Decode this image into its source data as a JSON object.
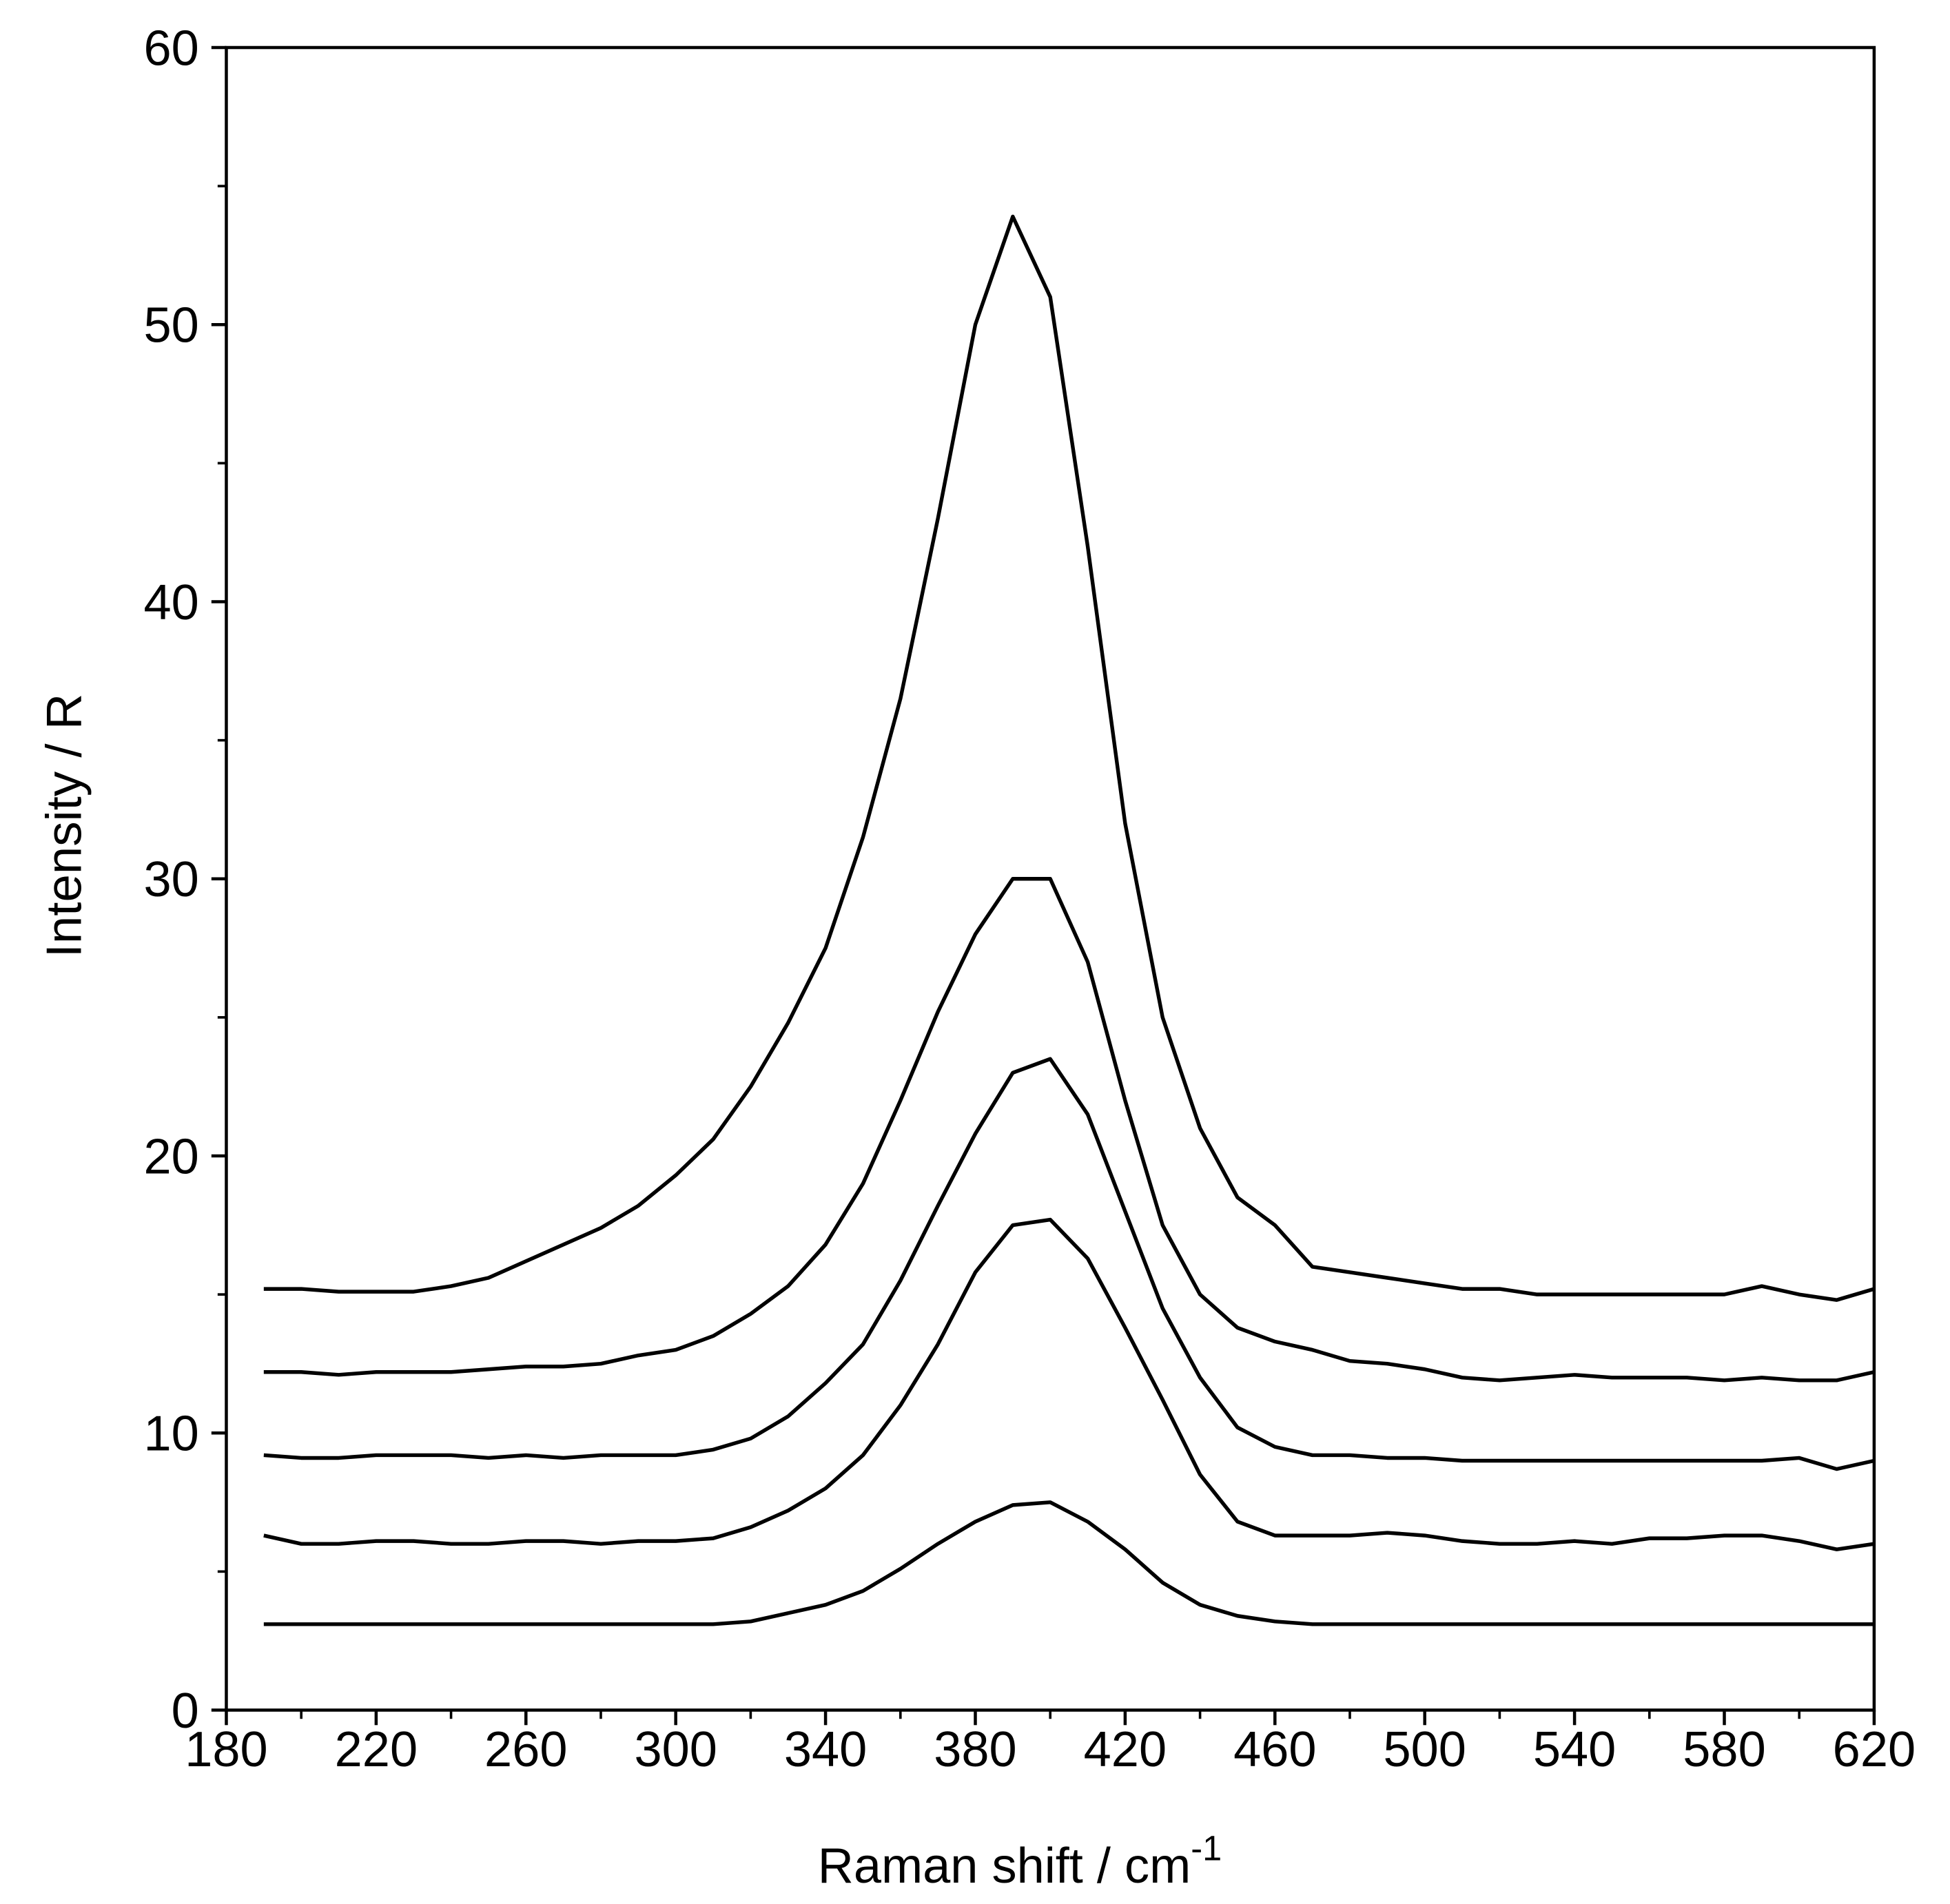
{
  "chart_data": {
    "type": "line",
    "x_label": "Raman shift / cm",
    "x_label_sup": "-1",
    "y_label": "Intensity / R",
    "x": [
      190,
      200,
      210,
      220,
      230,
      240,
      250,
      260,
      270,
      280,
      290,
      300,
      310,
      320,
      330,
      340,
      350,
      360,
      370,
      380,
      390,
      400,
      410,
      420,
      430,
      440,
      450,
      460,
      470,
      480,
      490,
      500,
      510,
      520,
      530,
      540,
      550,
      560,
      570,
      580,
      590,
      600,
      610,
      620
    ],
    "series": [
      {
        "color": "#000000",
        "values": [
          15.2,
          15.2,
          15.1,
          15.1,
          15.1,
          15.3,
          15.6,
          16.2,
          16.8,
          17.4,
          18.2,
          19.3,
          20.6,
          22.5,
          24.8,
          27.5,
          31.5,
          36.5,
          43,
          50,
          53.9,
          51,
          42,
          32,
          25,
          21,
          18.5,
          17.5,
          16,
          15.8,
          15.6,
          15.4,
          15.2,
          15.2,
          15,
          15,
          15,
          15,
          15,
          15,
          15.3,
          15,
          14.8,
          15.2
        ]
      },
      {
        "color": "#000000",
        "values": [
          12.2,
          12.2,
          12.1,
          12.2,
          12.2,
          12.2,
          12.3,
          12.4,
          12.4,
          12.5,
          12.8,
          13,
          13.5,
          14.3,
          15.3,
          16.8,
          19,
          22,
          25.2,
          28,
          30,
          30,
          27,
          22,
          17.5,
          15,
          13.8,
          13.3,
          13,
          12.6,
          12.5,
          12.3,
          12,
          11.9,
          12,
          12.1,
          12,
          12,
          12,
          11.9,
          12,
          11.9,
          11.9,
          12.2
        ]
      },
      {
        "color": "#000000",
        "values": [
          9.2,
          9.1,
          9.1,
          9.2,
          9.2,
          9.2,
          9.1,
          9.2,
          9.1,
          9.2,
          9.2,
          9.2,
          9.4,
          9.8,
          10.6,
          11.8,
          13.2,
          15.5,
          18.2,
          20.8,
          23,
          23.5,
          21.5,
          18,
          14.5,
          12,
          10.2,
          9.5,
          9.2,
          9.2,
          9.1,
          9.1,
          9,
          9,
          9,
          9,
          9,
          9,
          9,
          9,
          9,
          9.1,
          8.7,
          9
        ]
      },
      {
        "color": "#000000",
        "values": [
          6.3,
          6,
          6,
          6.1,
          6.1,
          6,
          6,
          6.1,
          6.1,
          6,
          6.1,
          6.1,
          6.2,
          6.6,
          7.2,
          8,
          9.2,
          11,
          13.2,
          15.8,
          17.5,
          17.7,
          16.3,
          13.8,
          11.2,
          8.5,
          6.8,
          6.3,
          6.3,
          6.3,
          6.4,
          6.3,
          6.1,
          6,
          6,
          6.1,
          6,
          6.2,
          6.2,
          6.3,
          6.3,
          6.1,
          5.8,
          6
        ]
      },
      {
        "color": "#000000",
        "values": [
          3.1,
          3.1,
          3.1,
          3.1,
          3.1,
          3.1,
          3.1,
          3.1,
          3.1,
          3.1,
          3.1,
          3.1,
          3.1,
          3.2,
          3.5,
          3.8,
          4.3,
          5.1,
          6,
          6.8,
          7.4,
          7.5,
          6.8,
          5.8,
          4.6,
          3.8,
          3.4,
          3.2,
          3.1,
          3.1,
          3.1,
          3.1,
          3.1,
          3.1,
          3.1,
          3.1,
          3.1,
          3.1,
          3.1,
          3.1,
          3.1,
          3.1,
          3.1,
          3.1
        ]
      }
    ],
    "xlim": [
      180,
      620
    ],
    "xticks": [
      180,
      220,
      260,
      300,
      340,
      380,
      420,
      460,
      500,
      540,
      580,
      620
    ],
    "ylim": [
      0,
      60
    ],
    "yticks": [
      0,
      10,
      20,
      30,
      40,
      50,
      60
    ]
  }
}
